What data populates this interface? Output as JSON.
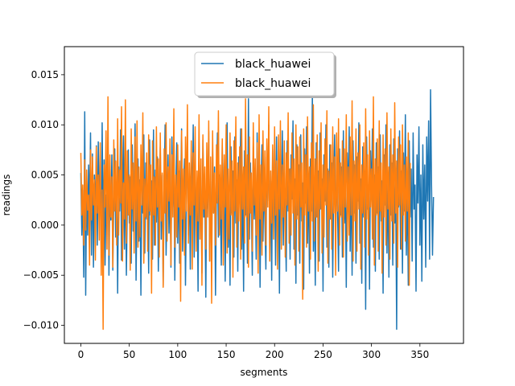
{
  "chart_data": {
    "type": "line",
    "xlabel": "segments",
    "ylabel": "readings",
    "xlim": [
      -17,
      395
    ],
    "ylim": [
      -0.0118,
      0.0178
    ],
    "xticks": [
      0,
      50,
      100,
      150,
      200,
      250,
      300,
      350
    ],
    "yticks": [
      -0.01,
      -0.005,
      0.0,
      0.005,
      0.01,
      0.015
    ],
    "ytick_labels": [
      "−0.010",
      "−0.005",
      "0.000",
      "0.005",
      "0.010",
      "0.015"
    ],
    "grid": false,
    "legend_position": "top-center",
    "series": [
      {
        "name": "black_huawei",
        "color": "#1f77b4",
        "x_start": 0,
        "x_step": 1,
        "values": [
          0.0052,
          -0.001,
          0.0035,
          -0.0052,
          0.0113,
          -0.007,
          0.0045,
          -0.001,
          0.006,
          0.0015,
          0.0092,
          -0.003,
          0.0071,
          -0.0042,
          0.005,
          0.001,
          0.0079,
          -0.002,
          0.0083,
          0.0015,
          0.0048,
          -0.0026,
          0.0102,
          -0.0015,
          0.0065,
          -0.004,
          0.003,
          0.0021,
          0.0088,
          -0.005,
          0.0041,
          0.0005,
          0.007,
          -0.0045,
          0.0025,
          0.0076,
          -0.0012,
          0.0038,
          -0.0068,
          0.0058,
          0.0014,
          0.0095,
          -0.0035,
          0.004,
          0.0089,
          -0.0024,
          0.006,
          -0.005,
          0.0022,
          0.0075,
          0.0002,
          0.0048,
          -0.0038,
          0.008,
          -0.0006,
          0.0035,
          0.0101,
          -0.0055,
          0.0029,
          0.0066,
          -0.0016,
          0.0045,
          -0.007,
          0.005,
          0.0012,
          0.009,
          -0.0028,
          0.0062,
          0.0006,
          0.0037,
          -0.0048,
          0.0085,
          0.001,
          0.0044,
          -0.0034,
          0.0095,
          -0.002,
          0.0055,
          0.0003,
          0.0068,
          -0.0046,
          0.0032,
          0.0078,
          -0.0014,
          0.005,
          -0.006,
          0.004,
          0.01,
          -0.003,
          0.0025,
          0.007,
          -0.0008,
          0.0046,
          -0.0042,
          0.0088,
          0.0018,
          0.006,
          -0.0055,
          0.0035,
          0.0082,
          -0.0018,
          0.0054,
          -0.0038,
          0.0028,
          0.0096,
          -0.0026,
          0.0042,
          0.0066,
          -0.006,
          0.003,
          0.009,
          -0.001,
          0.0048,
          -0.0044,
          0.0072,
          0.0015,
          0.01,
          -0.0032,
          0.0056,
          0.0004,
          0.004,
          -0.0066,
          0.0082,
          0.0022,
          0.005,
          -0.0048,
          0.0085,
          0.0008,
          0.003,
          -0.0072,
          0.006,
          0.0016,
          0.0094,
          -0.0036,
          0.0044,
          -0.0025,
          0.0075,
          0.0012,
          0.0058,
          -0.007,
          0.0035,
          0.0092,
          -0.0012,
          0.005,
          0.002,
          -0.004,
          0.008,
          0.0005,
          0.0062,
          -0.0056,
          0.004,
          0.0102,
          -0.0022,
          0.0036,
          -0.006,
          0.0078,
          0.0012,
          0.0054,
          -0.0032,
          0.0088,
          0.0002,
          0.0045,
          -0.0046,
          0.0068,
          0.0026,
          0.0096,
          -0.0024,
          0.004,
          -0.0066,
          0.0074,
          0.001,
          0.005,
          -0.0038,
          0.0126,
          -0.0014,
          0.0062,
          0.002,
          -0.005,
          0.0082,
          0.0006,
          0.0046,
          -0.0034,
          0.0092,
          0.0015,
          0.0058,
          -0.0062,
          0.0036,
          0.008,
          -0.0016,
          0.005,
          0.0004,
          -0.0044,
          0.0068,
          0.0024,
          0.01,
          -0.0028,
          0.0044,
          -0.0055,
          0.0076,
          0.0012,
          0.006,
          -0.004,
          0.0088,
          0.0,
          0.004,
          -0.0068,
          0.0072,
          0.0018,
          0.0094,
          -0.002,
          0.0052,
          0.0008,
          -0.0046,
          0.0084,
          0.0014,
          0.0056,
          -0.0034,
          0.007,
          0.0026,
          0.0104,
          -0.0024,
          0.0046,
          -0.0058,
          0.008,
          0.001,
          0.006,
          -0.0038,
          0.009,
          0.0004,
          0.0042,
          -0.0064,
          0.0076,
          0.0022,
          0.0098,
          -0.0018,
          0.005,
          -0.0048,
          0.0066,
          0.0014,
          0.0132,
          -0.0026,
          0.004,
          -0.006,
          0.0082,
          0.0008,
          0.0054,
          -0.0036,
          0.0092,
          0.0016,
          0.0046,
          -0.0066,
          0.007,
          0.0024,
          0.01,
          -0.0022,
          0.0056,
          -0.0042,
          0.008,
          0.0006,
          0.0062,
          -0.0052,
          0.0038,
          0.009,
          -0.0014,
          0.0048,
          0.0018,
          -0.0046,
          0.0076,
          0.001,
          0.0058,
          -0.0032,
          0.0094,
          0.0002,
          0.0044,
          -0.0062,
          0.0072,
          0.002,
          0.0098,
          -0.0026,
          0.0052,
          -0.005,
          0.0084,
          0.0012,
          0.006,
          -0.0038,
          0.0068,
          0.0024,
          0.0102,
          -0.0018,
          0.0046,
          -0.0058,
          0.0078,
          0.0008,
          0.0054,
          -0.0084,
          0.0088,
          0.0016,
          0.004,
          -0.0064,
          0.0074,
          0.0026,
          0.0096,
          -0.0022,
          0.005,
          -0.0046,
          0.0082,
          0.0012,
          0.0058,
          -0.0034,
          0.009,
          0.0004,
          0.0044,
          -0.0068,
          0.007,
          0.002,
          0.01,
          -0.0028,
          0.0048,
          -0.0052,
          0.008,
          0.001,
          0.0062,
          -0.004,
          0.0086,
          0.0002,
          0.0042,
          -0.0104,
          0.0076,
          0.0018,
          0.0094,
          -0.0024,
          0.0054,
          -0.0048,
          0.0072,
          0.0014,
          0.011,
          -0.003,
          0.0046,
          -0.006,
          0.0084,
          0.0008,
          0.0056,
          -0.0036,
          0.0092,
          0.0016,
          0.004,
          -0.0066,
          0.007,
          0.0022,
          0.0098,
          -0.002,
          0.005,
          -0.0056,
          0.008,
          0.0006,
          0.006,
          -0.0042,
          0.0088,
          0.0024,
          0.0104,
          -0.0034,
          0.0135,
          0.004,
          -0.003,
          0.0028
        ]
      },
      {
        "name": "black_huawei",
        "color": "#ff7f0e",
        "x_start": 0,
        "x_step": 1,
        "values": [
          0.0072,
          0.001,
          0.004,
          -0.002,
          0.0065,
          -0.0005,
          0.0055,
          0.0015,
          0.003,
          -0.004,
          0.0075,
          0.0005,
          0.0068,
          0.002,
          0.0045,
          -0.0035,
          0.0078,
          0.0012,
          0.005,
          -0.0015,
          0.0082,
          -0.005,
          0.0035,
          -0.0104,
          0.006,
          0.0018,
          0.0094,
          -0.0024,
          0.0128,
          -0.003,
          0.007,
          0.0008,
          0.0048,
          -0.0042,
          0.0085,
          0.0014,
          0.0064,
          -0.002,
          0.0106,
          -0.001,
          0.0055,
          0.0022,
          0.0118,
          -0.0036,
          0.0042,
          0.0006,
          0.0125,
          -0.0018,
          0.0074,
          0.001,
          0.005,
          -0.0045,
          0.0096,
          0.0016,
          0.0062,
          -0.0028,
          0.0088,
          0.0004,
          0.0104,
          -0.0022,
          0.0058,
          -0.0012,
          0.008,
          0.002,
          0.0112,
          -0.0038,
          0.0046,
          0.0008,
          0.0072,
          -0.0026,
          0.009,
          0.0014,
          0.006,
          -0.0068,
          0.0084,
          0.001,
          0.0048,
          -0.002,
          0.0098,
          0.0018,
          0.0066,
          -0.0032,
          0.0092,
          0.0004,
          0.0052,
          -0.0062,
          0.0076,
          0.0012,
          0.0102,
          -0.0016,
          0.0058,
          0.0024,
          0.0086,
          -0.004,
          0.007,
          0.0008,
          0.0116,
          -0.0022,
          0.005,
          -0.0012,
          0.008,
          0.0018,
          0.0064,
          -0.0076,
          0.0094,
          0.0006,
          0.0056,
          -0.003,
          0.0088,
          0.0014,
          0.012,
          -0.0018,
          0.0062,
          0.001,
          0.0084,
          -0.0044,
          0.0072,
          0.002,
          0.0098,
          -0.0026,
          0.0054,
          0.0004,
          0.011,
          -0.0014,
          0.0066,
          -0.006,
          0.009,
          0.0016,
          0.0058,
          -0.0024,
          0.0082,
          0.0008,
          0.0104,
          -0.0036,
          0.0068,
          -0.0078,
          0.0094,
          0.0012,
          0.0052,
          -0.002,
          0.008,
          0.0022,
          0.0114,
          -0.001,
          0.006,
          0.0006,
          0.0086,
          -0.004,
          0.007,
          0.0018,
          0.01,
          -0.0028,
          0.0056,
          -0.0014,
          0.0092,
          0.001,
          0.0064,
          -0.0052,
          0.0084,
          0.0014,
          0.0108,
          -0.0022,
          0.0062,
          0.0004,
          0.0078,
          -0.0034,
          0.0096,
          0.0016,
          0.0058,
          -0.0018,
          0.0126,
          0.0008,
          0.007,
          -0.0042,
          0.0088,
          0.0012,
          0.0052,
          -0.0026,
          0.0102,
          0.002,
          0.0066,
          -0.001,
          0.0082,
          -0.0048,
          0.011,
          0.0006,
          0.006,
          -0.003,
          0.0094,
          0.0014,
          0.0074,
          -0.002,
          0.0086,
          0.0018,
          0.0118,
          -0.0036,
          0.0054,
          0.0002,
          0.008,
          -0.0014,
          0.0098,
          0.001,
          0.0064,
          -0.0044,
          0.009,
          0.0016,
          0.0104,
          -0.0024,
          0.006,
          0.0008,
          0.0084,
          -0.0032,
          0.0072,
          0.002,
          0.0112,
          -0.0018,
          0.0056,
          -0.001,
          0.0092,
          0.0012,
          0.0066,
          -0.004,
          0.01,
          0.0006,
          0.0078,
          -0.0026,
          0.0088,
          0.0018,
          0.0062,
          -0.0074,
          0.0096,
          0.001,
          0.007,
          -0.0022,
          0.0108,
          0.0014,
          0.0058,
          -0.0034,
          0.0082,
          0.0004,
          0.012,
          -0.0016,
          0.0066,
          0.0008,
          0.009,
          -0.0046,
          0.0074,
          0.0016,
          0.0102,
          -0.0028,
          0.006,
          -0.0012,
          0.0086,
          0.002,
          0.0114,
          -0.0038,
          0.0054,
          0.0006,
          0.008,
          -0.0024,
          0.0098,
          0.0012,
          0.0068,
          -0.005,
          0.0092,
          0.0014,
          0.0106,
          -0.002,
          0.0062,
          0.0008,
          0.0084,
          -0.0032,
          0.0076,
          0.0018,
          0.011,
          -0.0016,
          0.0058,
          -0.001,
          0.0088,
          0.001,
          0.0124,
          -0.0036,
          0.0064,
          0.0004,
          0.0096,
          -0.0026,
          0.0072,
          0.0016,
          0.01,
          -0.0044,
          0.006,
          0.0012,
          0.0082,
          -0.0022,
          0.0116,
          0.0006,
          0.007,
          -0.003,
          0.0094,
          0.0018,
          0.0056,
          -0.0014,
          0.0128,
          -0.004,
          0.0066,
          0.001,
          0.0086,
          -0.0026,
          0.0104,
          0.0014,
          0.0062,
          -0.0048,
          0.009,
          0.0008,
          0.0076,
          -0.002,
          0.0112,
          0.0016,
          0.0058,
          -0.0034,
          0.0096,
          0.0004,
          0.007,
          -0.0018,
          0.0122,
          0.0012,
          0.0064,
          -0.0042,
          0.0088,
          0.002,
          0.008,
          -0.0024,
          0.01,
          0.001,
          0.006,
          -0.0016,
          0.0068,
          0.0014,
          0.0092,
          -0.006,
          0.0062
        ]
      }
    ]
  }
}
